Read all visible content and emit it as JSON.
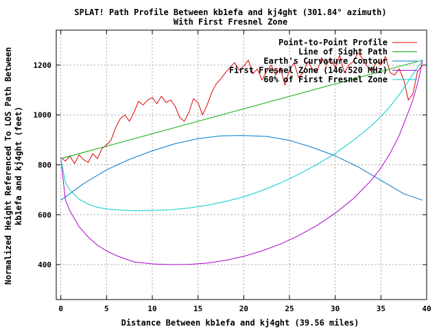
{
  "chart_data": {
    "type": "line",
    "title": "SPLAT! Path Profile Between kb1efa and kj4ght (301.84° azimuth)",
    "subtitle": "With First Fresnel Zone",
    "xlabel": "Distance Between kb1efa and kj4ght (39.56 miles)",
    "ylabel_line1": "Normalized Height Referenced To LOS Path Between",
    "ylabel_line2": "kb1efa and kj4ght (feet)",
    "xlim": [
      -0.5,
      40
    ],
    "ylim": [
      260,
      1340
    ],
    "x_ticks": [
      0,
      5,
      10,
      15,
      20,
      25,
      30,
      35,
      40
    ],
    "y_ticks": [
      400,
      600,
      800,
      1000,
      1200
    ],
    "grid": true,
    "legend_position": "top-right",
    "series": [
      {
        "name": "Point-to-Point Profile",
        "color": "#dd0000",
        "x": [
          0,
          0.5,
          1,
          1.5,
          2,
          2.5,
          3,
          3.5,
          4,
          4.5,
          5,
          5.5,
          6,
          6.5,
          7,
          7.5,
          8,
          8.5,
          9,
          9.5,
          10,
          10.5,
          11,
          11.5,
          12,
          12.5,
          13,
          13.5,
          14,
          14.5,
          15,
          15.5,
          16,
          16.5,
          17,
          17.5,
          18,
          18.5,
          19,
          19.5,
          20,
          20.5,
          21,
          21.5,
          22,
          22.5,
          23,
          23.5,
          24,
          24.5,
          25,
          25.5,
          26,
          26.5,
          27,
          27.5,
          28,
          28.5,
          29,
          29.5,
          30,
          30.5,
          31,
          31.5,
          32,
          32.5,
          33,
          33.5,
          34,
          34.5,
          35,
          35.5,
          36,
          36.5,
          37,
          37.5,
          38,
          38.5,
          39,
          39.56
        ],
        "y": [
          830,
          815,
          835,
          805,
          840,
          820,
          810,
          845,
          825,
          865,
          880,
          900,
          950,
          985,
          1000,
          975,
          1010,
          1055,
          1040,
          1060,
          1070,
          1045,
          1075,
          1050,
          1060,
          1035,
          990,
          975,
          1010,
          1065,
          1050,
          1000,
          1040,
          1090,
          1125,
          1145,
          1170,
          1190,
          1210,
          1180,
          1195,
          1220,
          1165,
          1185,
          1140,
          1175,
          1200,
          1160,
          1190,
          1120,
          1180,
          1210,
          1150,
          1170,
          1215,
          1185,
          1170,
          1230,
          1200,
          1225,
          1190,
          1240,
          1170,
          1200,
          1215,
          1250,
          1225,
          1195,
          1175,
          1215,
          1200,
          1235,
          1170,
          1160,
          1185,
          1140,
          1060,
          1085,
          1175,
          1200
        ]
      },
      {
        "name": "Line of Sight Path",
        "color": "#00aa00",
        "x": [
          0,
          39.56
        ],
        "y": [
          825,
          1220
        ]
      },
      {
        "name": "Earth's Curvature Contour",
        "color": "#0077cc",
        "x": [
          0,
          2.5,
          5,
          7.5,
          10,
          12.5,
          15,
          17.5,
          19.78,
          22.5,
          25,
          27.5,
          30,
          32.5,
          35,
          37.5,
          39.56
        ],
        "y": [
          658,
          725,
          780,
          822,
          856,
          885,
          905,
          916,
          918,
          914,
          898,
          870,
          836,
          792,
          738,
          684,
          658
        ]
      },
      {
        "name": "First Fresnel Zone (146.520 MHz)",
        "color": "#aa00cc",
        "x": [
          0,
          0.5,
          1,
          2,
          3,
          4,
          5,
          6,
          8,
          10,
          12,
          14,
          16,
          18,
          20,
          22,
          24,
          26,
          28,
          30,
          32,
          34,
          35,
          36,
          37,
          38,
          38.5,
          39,
          39.3,
          39.56
        ],
        "y": [
          825,
          660,
          615,
          552,
          510,
          478,
          455,
          437,
          411,
          403,
          400,
          401,
          406,
          417,
          433,
          455,
          482,
          516,
          557,
          606,
          665,
          740,
          788,
          846,
          918,
          1012,
          1061,
          1126,
          1172,
          1220
        ]
      },
      {
        "name": "60% of First Fresnel Zone",
        "color": "#00cccc",
        "x": [
          0,
          0.5,
          1,
          2,
          3,
          4,
          5,
          6,
          8,
          10,
          12,
          14,
          16,
          18,
          20,
          22,
          24,
          26,
          28,
          30,
          32,
          34,
          35,
          36,
          37,
          38,
          38.5,
          39,
          39.3,
          39.56
        ],
        "y": [
          825,
          730,
          698,
          662,
          642,
          630,
          623,
          620,
          616,
          617,
          620,
          627,
          638,
          653,
          672,
          697,
          727,
          762,
          801,
          846,
          898,
          958,
          994,
          1034,
          1081,
          1135,
          1164,
          1191,
          1205,
          1220
        ]
      }
    ]
  }
}
